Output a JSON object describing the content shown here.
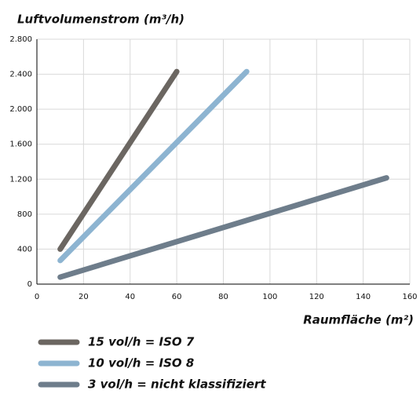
{
  "chart_data": {
    "type": "line",
    "title": "Luftvolumenstrom (m³/h)",
    "x_label": "Raumfläche (m²)",
    "xlim": [
      0,
      160
    ],
    "xticks": [
      0,
      20,
      40,
      60,
      80,
      100,
      120,
      140,
      160
    ],
    "ylim": [
      0,
      2800
    ],
    "yticks": [
      0,
      400,
      800,
      {
        "value": 1200,
        "label": "1.200"
      },
      {
        "value": 1600,
        "label": "1.600"
      },
      {
        "value": 2000,
        "label": "2.000"
      },
      {
        "value": 2400,
        "label": "2.400"
      },
      {
        "value": 2800,
        "label": "2.800"
      }
    ],
    "grid": true,
    "series": [
      {
        "name": "15 vol/h = ISO 7",
        "color": "#6b6661",
        "x": [
          10,
          60
        ],
        "values": [
          400,
          2430
        ]
      },
      {
        "name": "10 vol/h = ISO 8",
        "color": "#8db4d1",
        "x": [
          10,
          90
        ],
        "values": [
          270,
          2430
        ]
      },
      {
        "name": "3 vol/h = nicht klassifiziert",
        "color": "#6e7d8b",
        "x": [
          10,
          150
        ],
        "values": [
          80,
          1215
        ]
      }
    ]
  }
}
